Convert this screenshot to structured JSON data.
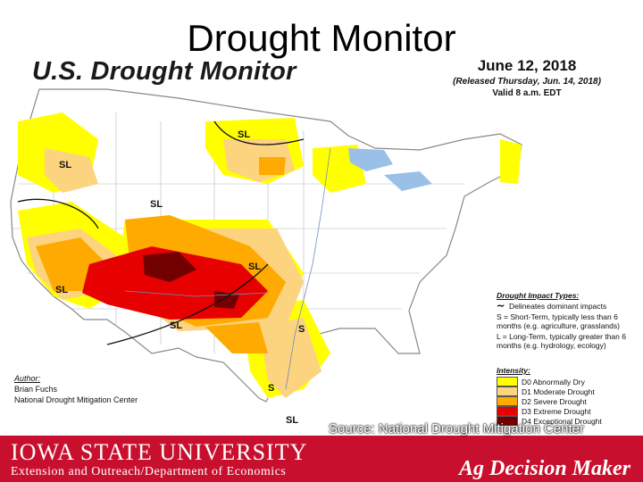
{
  "slide_title": "Drought Monitor",
  "map_title": "U.S. Drought Monitor",
  "date": "June 12, 2018",
  "released": "(Released Thursday, Jun. 14, 2018)",
  "valid": "Valid 8 a.m. EDT",
  "author": {
    "label": "Author:",
    "name": "Brian Fuchs",
    "org": "National Drought Mitigation Center"
  },
  "impact_types": {
    "header": "Drought Impact Types:",
    "delineates": "Delineates dominant impacts",
    "short_term": "S = Short-Term, typically less than 6 months (e.g. agriculture, grasslands)",
    "long_term": "L = Long-Term, typically greater than 6 months (e.g. hydrology, ecology)"
  },
  "intensity": {
    "header": "Intensity:",
    "items": [
      {
        "label": "D0 Abnormally Dry",
        "color": "#ffff00"
      },
      {
        "label": "D1 Moderate Drought",
        "color": "#fcd37f"
      },
      {
        "label": "D2 Severe Drought",
        "color": "#ffaa00"
      },
      {
        "label": "D3 Extreme Drought",
        "color": "#e60000"
      },
      {
        "label": "D4 Exceptional Drought",
        "color": "#730000"
      }
    ]
  },
  "region_labels": [
    "SL",
    "SL",
    "SL",
    "SL",
    "SL",
    "SL",
    "S",
    "S",
    "SL"
  ],
  "footer": {
    "university": "IOWA STATE UNIVERSITY",
    "extension": "Extension and Outreach/Department of Economics",
    "source": "Source: National Drought Mitigation Center",
    "brand": "Ag Decision Maker",
    "bg_color": "#c8102e"
  }
}
